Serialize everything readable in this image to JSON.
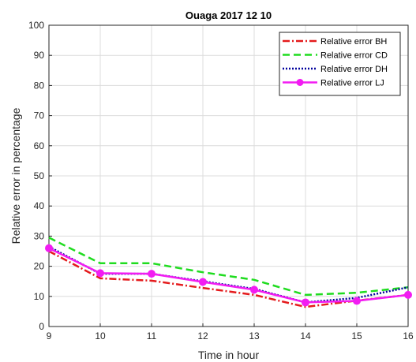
{
  "chart_data": {
    "type": "line",
    "title": "Ouaga 2017 12 10",
    "xlabel": "Time in hour",
    "ylabel": "Relative error in percentage",
    "x": [
      9,
      10,
      11,
      12,
      13,
      14,
      15,
      16
    ],
    "xlim": [
      9,
      16
    ],
    "ylim": [
      0,
      100
    ],
    "xticks": [
      "9",
      "10",
      "11",
      "12",
      "13",
      "14",
      "15",
      "16"
    ],
    "yticks": [
      "0",
      "10",
      "20",
      "30",
      "40",
      "50",
      "60",
      "70",
      "80",
      "90",
      "100"
    ],
    "grid": true,
    "legend_position": "top-right",
    "series": [
      {
        "name": "Relative error BH",
        "values": [
          25,
          16,
          15.2,
          12.8,
          10.5,
          6.5,
          8.6,
          10.5
        ],
        "color": "#e41a1c",
        "style": "dash-dot",
        "marker": "none"
      },
      {
        "name": "Relative error CD",
        "values": [
          29.5,
          21,
          21,
          18,
          15.5,
          10.5,
          11.2,
          13
        ],
        "color": "#1fdc1f",
        "style": "dashed",
        "marker": "none"
      },
      {
        "name": "Relative error DH",
        "values": [
          26.5,
          17.5,
          17.5,
          15,
          12.5,
          8,
          9.5,
          13
        ],
        "color": "#00009c",
        "style": "dotted",
        "marker": "none"
      },
      {
        "name": "Relative error LJ",
        "values": [
          26,
          17.7,
          17.5,
          14.8,
          12.2,
          8,
          8.5,
          10.5
        ],
        "color": "#f21cf2",
        "style": "solid",
        "marker": "circle"
      }
    ]
  }
}
